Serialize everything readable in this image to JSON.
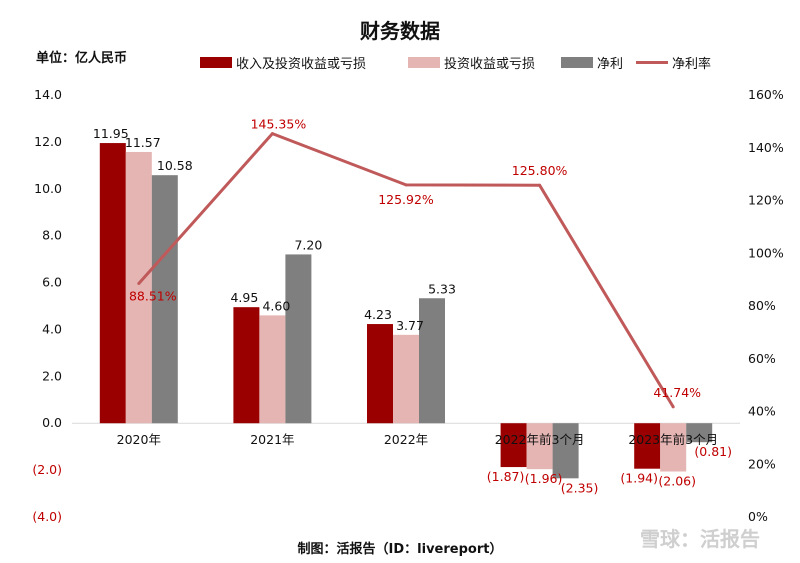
{
  "chart_data": {
    "type": "bar",
    "title": "财务数据",
    "unit_label": "单位：亿人民币",
    "categories": [
      "2020年",
      "2021年",
      "2022年",
      "2022年前3个月",
      "2023年前3个月"
    ],
    "series": [
      {
        "name": "收入及投资收益或亏损",
        "values": [
          11.95,
          4.95,
          4.23,
          -1.87,
          -1.94
        ],
        "labels": [
          "11.95",
          "4.95",
          "4.23",
          "(1.87)",
          "(1.94)"
        ]
      },
      {
        "name": "投资收益或亏损",
        "values": [
          11.57,
          4.6,
          3.77,
          -1.96,
          -2.06
        ],
        "labels": [
          "11.57",
          "4.60",
          "3.77",
          "(1.96)",
          "(2.06)"
        ]
      },
      {
        "name": "净利",
        "values": [
          10.58,
          7.2,
          5.33,
          -2.35,
          -0.81
        ],
        "labels": [
          "10.58",
          "7.20",
          "5.33",
          "(2.35)",
          "(0.81)"
        ]
      }
    ],
    "line_series": {
      "name": "净利率",
      "values": [
        88.51,
        145.35,
        125.92,
        125.8,
        41.74
      ],
      "labels": [
        "88.51%",
        "145.35%",
        "125.92%",
        "125.80%",
        "41.74%"
      ]
    },
    "y_left": {
      "ylim": [
        -4.0,
        14.0
      ],
      "ticks": [
        14.0,
        12.0,
        10.0,
        8.0,
        6.0,
        4.0,
        2.0,
        0.0,
        -2.0,
        -4.0
      ],
      "tick_labels": [
        "14.0",
        "12.0",
        "10.0",
        "8.0",
        "6.0",
        "4.0",
        "2.0",
        "0.0",
        "(2.0)",
        "(4.0)"
      ]
    },
    "y_right": {
      "ylim": [
        0,
        160
      ],
      "ticks": [
        160,
        140,
        120,
        100,
        80,
        60,
        40,
        20,
        0
      ],
      "tick_labels": [
        "160%",
        "140%",
        "120%",
        "100%",
        "80%",
        "60%",
        "40%",
        "20%",
        "0%"
      ]
    },
    "legend_position": "top",
    "grid": false
  },
  "colors": {
    "series": [
      "#9b0000",
      "#e5b5b4",
      "#7f7f7f"
    ],
    "line": "#c0595a"
  },
  "footer": "制图：活报告（ID：livereport）",
  "watermark": "雪球：活报告"
}
